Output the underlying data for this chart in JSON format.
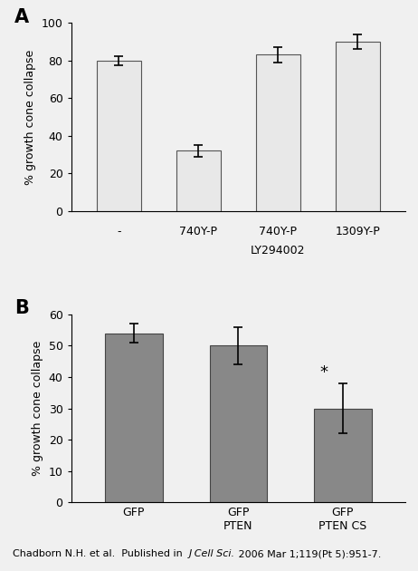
{
  "panel_A": {
    "categories": [
      "-",
      "740Y-P",
      "740Y-P",
      "1309Y-P"
    ],
    "subcategories": [
      "",
      "",
      "LY294002",
      ""
    ],
    "values": [
      80,
      32,
      83,
      90
    ],
    "errors": [
      2.5,
      3,
      4,
      4
    ],
    "bar_color": "#e8e8e8",
    "edge_color": "#555555",
    "ylim": [
      0,
      100
    ],
    "yticks": [
      0,
      20,
      40,
      60,
      80,
      100
    ],
    "ylabel": "% growth cone collapse",
    "label": "A"
  },
  "panel_B": {
    "categories": [
      "GFP",
      "GFP\nPTEN",
      "GFP\nPTEN CS"
    ],
    "values": [
      54,
      50,
      30
    ],
    "errors": [
      3,
      6,
      8
    ],
    "bar_color": "#888888",
    "edge_color": "#444444",
    "ylim": [
      0,
      60
    ],
    "yticks": [
      0,
      10,
      20,
      30,
      40,
      50,
      60
    ],
    "ylabel": "% growth cone collapse",
    "label": "B",
    "star_index": 2
  },
  "caption_pre": "Chadborn N.H. et al.  Published in  ",
  "caption_italic": "J Cell Sci.",
  "caption_post": " 2006 Mar 1;119(Pt 5):951-7.",
  "fig_width": 4.62,
  "fig_height": 6.3,
  "background_color": "#f0f0f0"
}
